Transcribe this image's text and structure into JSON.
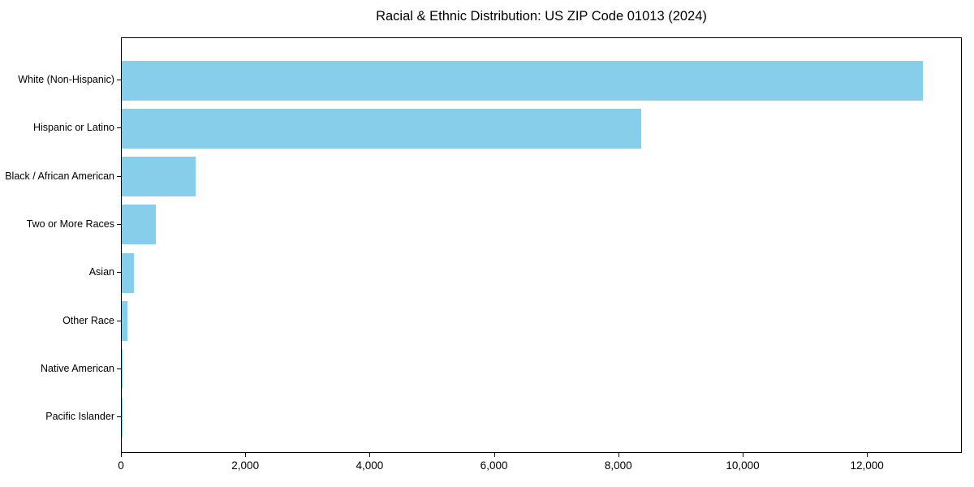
{
  "chart_data": {
    "type": "bar",
    "orientation": "horizontal",
    "title": "Racial & Ethnic Distribution: US ZIP Code 01013 (2024)",
    "categories": [
      "White (Non-Hispanic)",
      "Hispanic or Latino",
      "Black / African American",
      "Two or More Races",
      "Asian",
      "Other Race",
      "Native American",
      "Pacific Islander"
    ],
    "values": [
      12890,
      8350,
      1190,
      550,
      200,
      90,
      15,
      5
    ],
    "xlabel": "",
    "ylabel": "",
    "xlim": [
      0,
      13525
    ],
    "x_ticks": [
      0,
      2000,
      4000,
      6000,
      8000,
      10000,
      12000
    ],
    "x_tick_labels": [
      "0",
      "2,000",
      "4,000",
      "6,000",
      "8,000",
      "10,000",
      "12,000"
    ],
    "bar_color": "#87CEEB",
    "axis_color": "#000000",
    "text_color": "#000000",
    "background_color": "#FFFFFF",
    "grid": false,
    "legend": null
  }
}
